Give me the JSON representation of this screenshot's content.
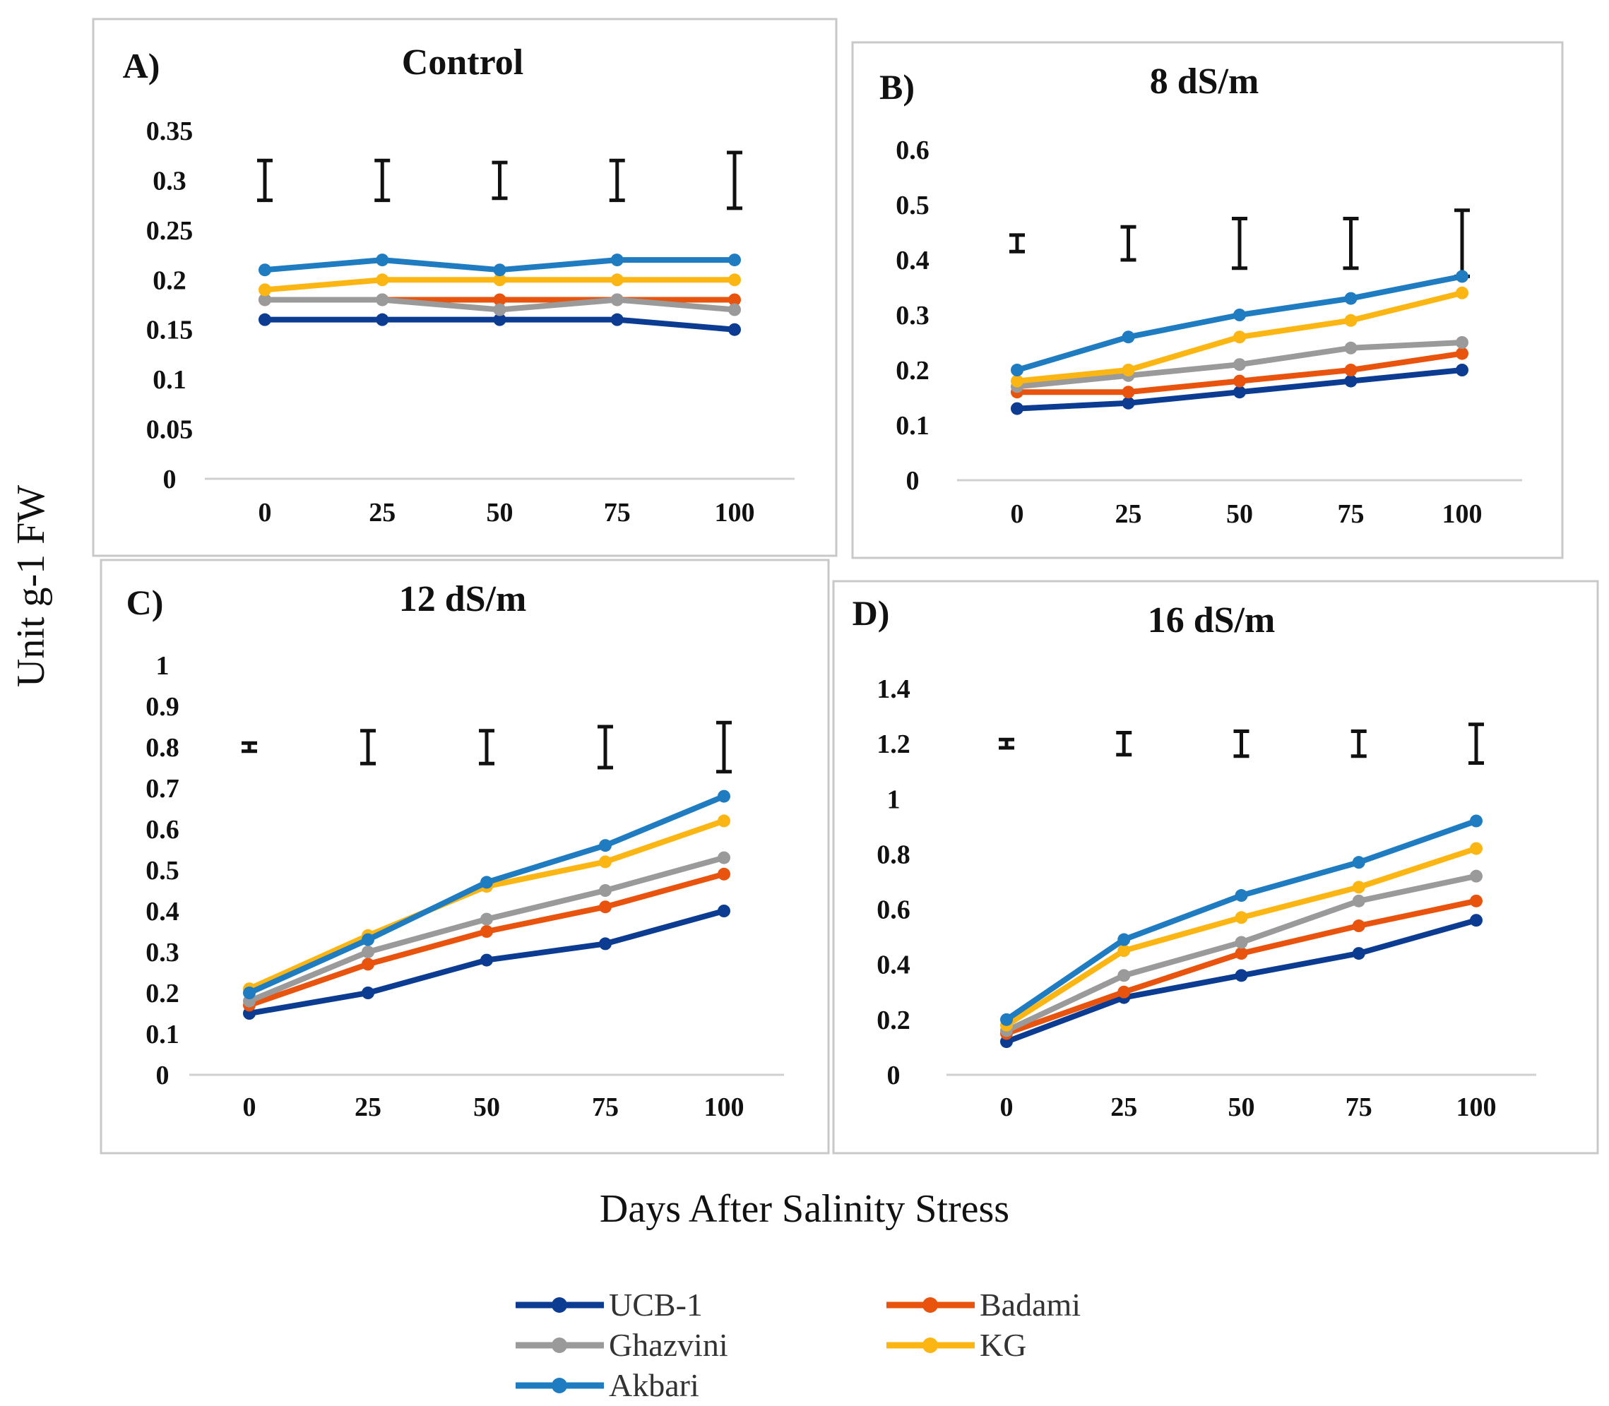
{
  "chart_data": [
    {
      "type": "line",
      "panel_label": "A)",
      "title": "Control",
      "xlabel": "Days After Salinity Stress",
      "ylabel": "Unit g-1 FW",
      "x": [
        0,
        25,
        50,
        75,
        100
      ],
      "x_tick_labels": [
        "0",
        "25",
        "50",
        "75",
        "100"
      ],
      "y_ticks": [
        0,
        0.05,
        0.1,
        0.15,
        0.2,
        0.25,
        0.3,
        0.35
      ],
      "y_tick_labels": [
        "0",
        "0.05",
        "0.1",
        "0.15",
        "0.2",
        "0.25",
        "0.3",
        "0.35"
      ],
      "ylim": [
        0,
        0.35
      ],
      "series": [
        {
          "name": "UCB-1",
          "values": [
            0.16,
            0.16,
            0.16,
            0.16,
            0.15
          ]
        },
        {
          "name": "Badami",
          "values": [
            0.18,
            0.18,
            0.18,
            0.18,
            0.18
          ]
        },
        {
          "name": "Ghazvini",
          "values": [
            0.18,
            0.18,
            0.17,
            0.18,
            0.17
          ]
        },
        {
          "name": "KG",
          "values": [
            0.19,
            0.2,
            0.2,
            0.2,
            0.2
          ]
        },
        {
          "name": "Akbari",
          "values": [
            0.21,
            0.22,
            0.21,
            0.22,
            0.22
          ]
        }
      ],
      "error_bars": [
        {
          "center": 0.3,
          "half": 0.02
        },
        {
          "center": 0.3,
          "half": 0.02
        },
        {
          "center": 0.3,
          "half": 0.018
        },
        {
          "center": 0.3,
          "half": 0.02
        },
        {
          "center": 0.3,
          "half": 0.028
        }
      ]
    },
    {
      "type": "line",
      "panel_label": "B)",
      "title": "8 dS/m",
      "xlabel": "Days After Salinity Stress",
      "ylabel": "Unit g-1 FW",
      "x": [
        0,
        25,
        50,
        75,
        100
      ],
      "x_tick_labels": [
        "0",
        "25",
        "50",
        "75",
        "100"
      ],
      "y_ticks": [
        0,
        0.1,
        0.2,
        0.3,
        0.4,
        0.5,
        0.6
      ],
      "y_tick_labels": [
        "0",
        "0.1",
        "0.2",
        "0.3",
        "0.4",
        "0.5",
        "0.6"
      ],
      "ylim": [
        0,
        0.6
      ],
      "series": [
        {
          "name": "UCB-1",
          "values": [
            0.13,
            0.14,
            0.16,
            0.18,
            0.2
          ]
        },
        {
          "name": "Badami",
          "values": [
            0.16,
            0.16,
            0.18,
            0.2,
            0.23
          ]
        },
        {
          "name": "Ghazvini",
          "values": [
            0.17,
            0.19,
            0.21,
            0.24,
            0.25
          ]
        },
        {
          "name": "KG",
          "values": [
            0.18,
            0.2,
            0.26,
            0.29,
            0.34
          ]
        },
        {
          "name": "Akbari",
          "values": [
            0.2,
            0.26,
            0.3,
            0.33,
            0.37
          ]
        }
      ],
      "error_bars": [
        {
          "center": 0.43,
          "half": 0.015
        },
        {
          "center": 0.43,
          "half": 0.03
        },
        {
          "center": 0.43,
          "half": 0.045
        },
        {
          "center": 0.43,
          "half": 0.045
        },
        {
          "center": 0.43,
          "half": 0.06
        }
      ]
    },
    {
      "type": "line",
      "panel_label": "C)",
      "title": "12 dS/m",
      "xlabel": "Days After Salinity Stress",
      "ylabel": "Unit g-1 FW",
      "x": [
        0,
        25,
        50,
        75,
        100
      ],
      "x_tick_labels": [
        "0",
        "25",
        "50",
        "75",
        "100"
      ],
      "y_ticks": [
        0,
        0.1,
        0.2,
        0.3,
        0.4,
        0.5,
        0.6,
        0.7,
        0.8,
        0.9,
        1
      ],
      "y_tick_labels": [
        "0",
        "0.1",
        "0.2",
        "0.3",
        "0.4",
        "0.5",
        "0.6",
        "0.7",
        "0.8",
        "0.9",
        "1"
      ],
      "ylim": [
        0,
        1
      ],
      "series": [
        {
          "name": "UCB-1",
          "values": [
            0.15,
            0.2,
            0.28,
            0.32,
            0.4
          ]
        },
        {
          "name": "Badami",
          "values": [
            0.17,
            0.27,
            0.35,
            0.41,
            0.49
          ]
        },
        {
          "name": "Ghazvini",
          "values": [
            0.18,
            0.3,
            0.38,
            0.45,
            0.53
          ]
        },
        {
          "name": "KG",
          "values": [
            0.21,
            0.34,
            0.46,
            0.52,
            0.62
          ]
        },
        {
          "name": "Akbari",
          "values": [
            0.2,
            0.33,
            0.47,
            0.56,
            0.68
          ]
        }
      ],
      "error_bars": [
        {
          "center": 0.8,
          "half": 0.01
        },
        {
          "center": 0.8,
          "half": 0.04
        },
        {
          "center": 0.8,
          "half": 0.04
        },
        {
          "center": 0.8,
          "half": 0.05
        },
        {
          "center": 0.8,
          "half": 0.06
        }
      ]
    },
    {
      "type": "line",
      "panel_label": "D)",
      "title": "16 dS/m",
      "xlabel": "Days After Salinity Stress",
      "ylabel": "Unit g-1 FW",
      "x": [
        0,
        25,
        50,
        75,
        100
      ],
      "x_tick_labels": [
        "0",
        "25",
        "50",
        "75",
        "100"
      ],
      "y_ticks": [
        0,
        0.2,
        0.4,
        0.6,
        0.8,
        1,
        1.2,
        1.4
      ],
      "y_tick_labels": [
        "0",
        "0.2",
        "0.4",
        "0.6",
        "0.8",
        "1",
        "1.2",
        "1.4"
      ],
      "ylim": [
        0,
        1.4
      ],
      "series": [
        {
          "name": "UCB-1",
          "values": [
            0.12,
            0.28,
            0.36,
            0.44,
            0.56
          ]
        },
        {
          "name": "Badami",
          "values": [
            0.15,
            0.3,
            0.44,
            0.54,
            0.63
          ]
        },
        {
          "name": "Ghazvini",
          "values": [
            0.16,
            0.36,
            0.48,
            0.63,
            0.72
          ]
        },
        {
          "name": "KG",
          "values": [
            0.18,
            0.45,
            0.57,
            0.68,
            0.82
          ]
        },
        {
          "name": "Akbari",
          "values": [
            0.2,
            0.49,
            0.65,
            0.77,
            0.92
          ]
        }
      ],
      "error_bars": [
        {
          "center": 1.2,
          "half": 0.015
        },
        {
          "center": 1.2,
          "half": 0.04
        },
        {
          "center": 1.2,
          "half": 0.045
        },
        {
          "center": 1.2,
          "half": 0.045
        },
        {
          "center": 1.2,
          "half": 0.07
        }
      ]
    }
  ],
  "figure": {
    "ylabel": "Unit g-1 FW",
    "xlabel": "Days After Salinity Stress"
  },
  "legend": {
    "position": "bottom-center",
    "entries": [
      {
        "name": "UCB-1",
        "color": "#0b3c91"
      },
      {
        "name": "Badami",
        "color": "#e8530e"
      },
      {
        "name": "Ghazvini",
        "color": "#9a9a9a"
      },
      {
        "name": "KG",
        "color": "#fbb614"
      },
      {
        "name": "Akbari",
        "color": "#1f7cc1"
      }
    ]
  }
}
